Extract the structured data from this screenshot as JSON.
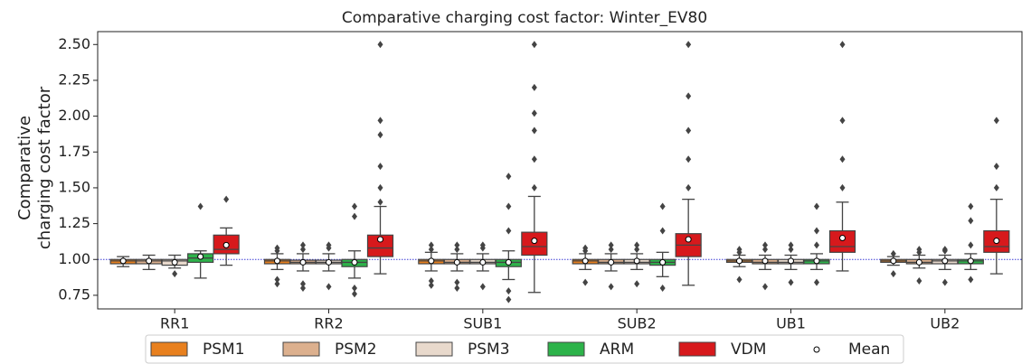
{
  "chart_data": {
    "type": "box",
    "title": "Comparative charging cost factor: Winter_EV80",
    "ylabel": [
      "Comparative",
      "charging cost factor"
    ],
    "categories": [
      "RR1",
      "RR2",
      "SUB1",
      "SUB2",
      "UB1",
      "UB2"
    ],
    "ylim": [
      0.655,
      2.59
    ],
    "yticks": [
      {
        "value": 0.75,
        "label": "0.75"
      },
      {
        "value": 1.0,
        "label": "1.00"
      },
      {
        "value": 1.25,
        "label": "1.25"
      },
      {
        "value": 1.5,
        "label": "1.50"
      },
      {
        "value": 1.75,
        "label": "1.75"
      },
      {
        "value": 2.0,
        "label": "2.00"
      },
      {
        "value": 2.25,
        "label": "2.25"
      },
      {
        "value": 2.5,
        "label": "2.50"
      }
    ],
    "reference_line": 1.0,
    "reference_color": "#3a3ad6",
    "mean_label": "Mean",
    "legend": "bottom",
    "series": [
      {
        "name": "PSM1",
        "color": "#e8801e",
        "boxes": [
          {
            "whislo": 0.95,
            "q1": 0.97,
            "med": 0.99,
            "q3": 1.0,
            "whishi": 1.02,
            "mean": 0.99,
            "fliers": []
          },
          {
            "whislo": 0.93,
            "q1": 0.97,
            "med": 0.99,
            "q3": 1.0,
            "whishi": 1.04,
            "mean": 0.99,
            "fliers": [
              0.83,
              0.86,
              1.06,
              1.08
            ]
          },
          {
            "whislo": 0.92,
            "q1": 0.97,
            "med": 0.99,
            "q3": 1.0,
            "whishi": 1.05,
            "mean": 0.99,
            "fliers": [
              0.82,
              0.85,
              1.07,
              1.1
            ]
          },
          {
            "whislo": 0.93,
            "q1": 0.97,
            "med": 0.99,
            "q3": 1.0,
            "whishi": 1.04,
            "mean": 0.99,
            "fliers": [
              0.84,
              1.06,
              1.08
            ]
          },
          {
            "whislo": 0.95,
            "q1": 0.98,
            "med": 0.99,
            "q3": 1.0,
            "whishi": 1.03,
            "mean": 0.99,
            "fliers": [
              0.86,
              1.05,
              1.07
            ]
          },
          {
            "whislo": 0.96,
            "q1": 0.98,
            "med": 0.99,
            "q3": 1.0,
            "whishi": 1.02,
            "mean": 0.99,
            "fliers": [
              0.9,
              1.04
            ]
          }
        ]
      },
      {
        "name": "PSM2",
        "color": "#dcb08e",
        "boxes": [
          {
            "whislo": 0.93,
            "q1": 0.97,
            "med": 0.99,
            "q3": 1.0,
            "whishi": 1.03,
            "mean": 0.99,
            "fliers": []
          },
          {
            "whislo": 0.92,
            "q1": 0.97,
            "med": 0.98,
            "q3": 0.995,
            "whishi": 1.04,
            "mean": 0.98,
            "fliers": [
              0.8,
              0.83,
              1.07,
              1.1
            ]
          },
          {
            "whislo": 0.92,
            "q1": 0.97,
            "med": 0.98,
            "q3": 1.0,
            "whishi": 1.04,
            "mean": 0.98,
            "fliers": [
              0.8,
              0.84,
              1.07,
              1.1
            ]
          },
          {
            "whislo": 0.92,
            "q1": 0.97,
            "med": 0.98,
            "q3": 1.0,
            "whishi": 1.04,
            "mean": 0.98,
            "fliers": [
              0.81,
              1.07,
              1.1
            ]
          },
          {
            "whislo": 0.93,
            "q1": 0.97,
            "med": 0.98,
            "q3": 1.0,
            "whishi": 1.03,
            "mean": 0.99,
            "fliers": [
              0.81,
              1.07,
              1.1
            ]
          },
          {
            "whislo": 0.94,
            "q1": 0.97,
            "med": 0.98,
            "q3": 1.0,
            "whishi": 1.03,
            "mean": 0.98,
            "fliers": [
              0.85,
              1.05,
              1.07
            ]
          }
        ]
      },
      {
        "name": "PSM3",
        "color": "#e8d9cc",
        "boxes": [
          {
            "whislo": 0.94,
            "q1": 0.96,
            "med": 0.99,
            "q3": 1.0,
            "whishi": 1.03,
            "mean": 0.98,
            "fliers": [
              0.9
            ]
          },
          {
            "whislo": 0.92,
            "q1": 0.97,
            "med": 0.98,
            "q3": 0.995,
            "whishi": 1.04,
            "mean": 0.98,
            "fliers": [
              0.81,
              1.08,
              1.1
            ]
          },
          {
            "whislo": 0.92,
            "q1": 0.97,
            "med": 0.98,
            "q3": 1.0,
            "whishi": 1.04,
            "mean": 0.98,
            "fliers": [
              0.81,
              1.08,
              1.1
            ]
          },
          {
            "whislo": 0.93,
            "q1": 0.97,
            "med": 0.98,
            "q3": 1.0,
            "whishi": 1.04,
            "mean": 0.99,
            "fliers": [
              0.83,
              1.07,
              1.1
            ]
          },
          {
            "whislo": 0.93,
            "q1": 0.97,
            "med": 0.98,
            "q3": 1.0,
            "whishi": 1.03,
            "mean": 0.99,
            "fliers": [
              0.84,
              1.07,
              1.1
            ]
          },
          {
            "whislo": 0.93,
            "q1": 0.97,
            "med": 0.99,
            "q3": 1.0,
            "whishi": 1.03,
            "mean": 0.99,
            "fliers": [
              0.84,
              1.06,
              1.07
            ]
          }
        ]
      },
      {
        "name": "ARM",
        "color": "#2db34a",
        "boxes": [
          {
            "whislo": 0.87,
            "q1": 0.98,
            "med": 1.01,
            "q3": 1.04,
            "whishi": 1.06,
            "mean": 1.02,
            "fliers": [
              1.37
            ]
          },
          {
            "whislo": 0.87,
            "q1": 0.95,
            "med": 0.98,
            "q3": 1.0,
            "whishi": 1.06,
            "mean": 0.98,
            "fliers": [
              0.76,
              0.8,
              1.3,
              1.37
            ]
          },
          {
            "whislo": 0.86,
            "q1": 0.95,
            "med": 0.98,
            "q3": 1.0,
            "whishi": 1.06,
            "mean": 0.98,
            "fliers": [
              0.72,
              0.78,
              1.2,
              1.37,
              1.58
            ]
          },
          {
            "whislo": 0.88,
            "q1": 0.96,
            "med": 0.98,
            "q3": 1.0,
            "whishi": 1.05,
            "mean": 0.98,
            "fliers": [
              0.8,
              1.2,
              1.37
            ]
          },
          {
            "whislo": 0.93,
            "q1": 0.97,
            "med": 0.99,
            "q3": 1.0,
            "whishi": 1.04,
            "mean": 0.99,
            "fliers": [
              0.84,
              1.1,
              1.2,
              1.37
            ]
          },
          {
            "whislo": 0.93,
            "q1": 0.97,
            "med": 0.99,
            "q3": 1.0,
            "whishi": 1.04,
            "mean": 0.99,
            "fliers": [
              0.86,
              1.1,
              1.27,
              1.37
            ]
          }
        ]
      },
      {
        "name": "VDM",
        "color": "#d7191c",
        "boxes": [
          {
            "whislo": 0.96,
            "q1": 1.04,
            "med": 1.07,
            "q3": 1.17,
            "whishi": 1.22,
            "mean": 1.1,
            "fliers": [
              1.42
            ]
          },
          {
            "whislo": 0.9,
            "q1": 1.02,
            "med": 1.08,
            "q3": 1.17,
            "whishi": 1.37,
            "mean": 1.14,
            "fliers": [
              1.4,
              1.5,
              1.65,
              1.87,
              1.97,
              2.5
            ]
          },
          {
            "whislo": 0.77,
            "q1": 1.03,
            "med": 1.09,
            "q3": 1.19,
            "whishi": 1.44,
            "mean": 1.13,
            "fliers": [
              1.5,
              1.7,
              1.9,
              2.02,
              2.2,
              2.5
            ]
          },
          {
            "whislo": 0.82,
            "q1": 1.02,
            "med": 1.1,
            "q3": 1.18,
            "whishi": 1.42,
            "mean": 1.14,
            "fliers": [
              1.5,
              1.7,
              1.9,
              2.14,
              2.5
            ]
          },
          {
            "whislo": 0.92,
            "q1": 1.05,
            "med": 1.09,
            "q3": 1.2,
            "whishi": 1.4,
            "mean": 1.15,
            "fliers": [
              1.5,
              1.7,
              1.97,
              2.5
            ]
          },
          {
            "whislo": 0.9,
            "q1": 1.05,
            "med": 1.09,
            "q3": 1.2,
            "whishi": 1.42,
            "mean": 1.13,
            "fliers": [
              1.5,
              1.65,
              1.97
            ]
          }
        ]
      }
    ]
  }
}
